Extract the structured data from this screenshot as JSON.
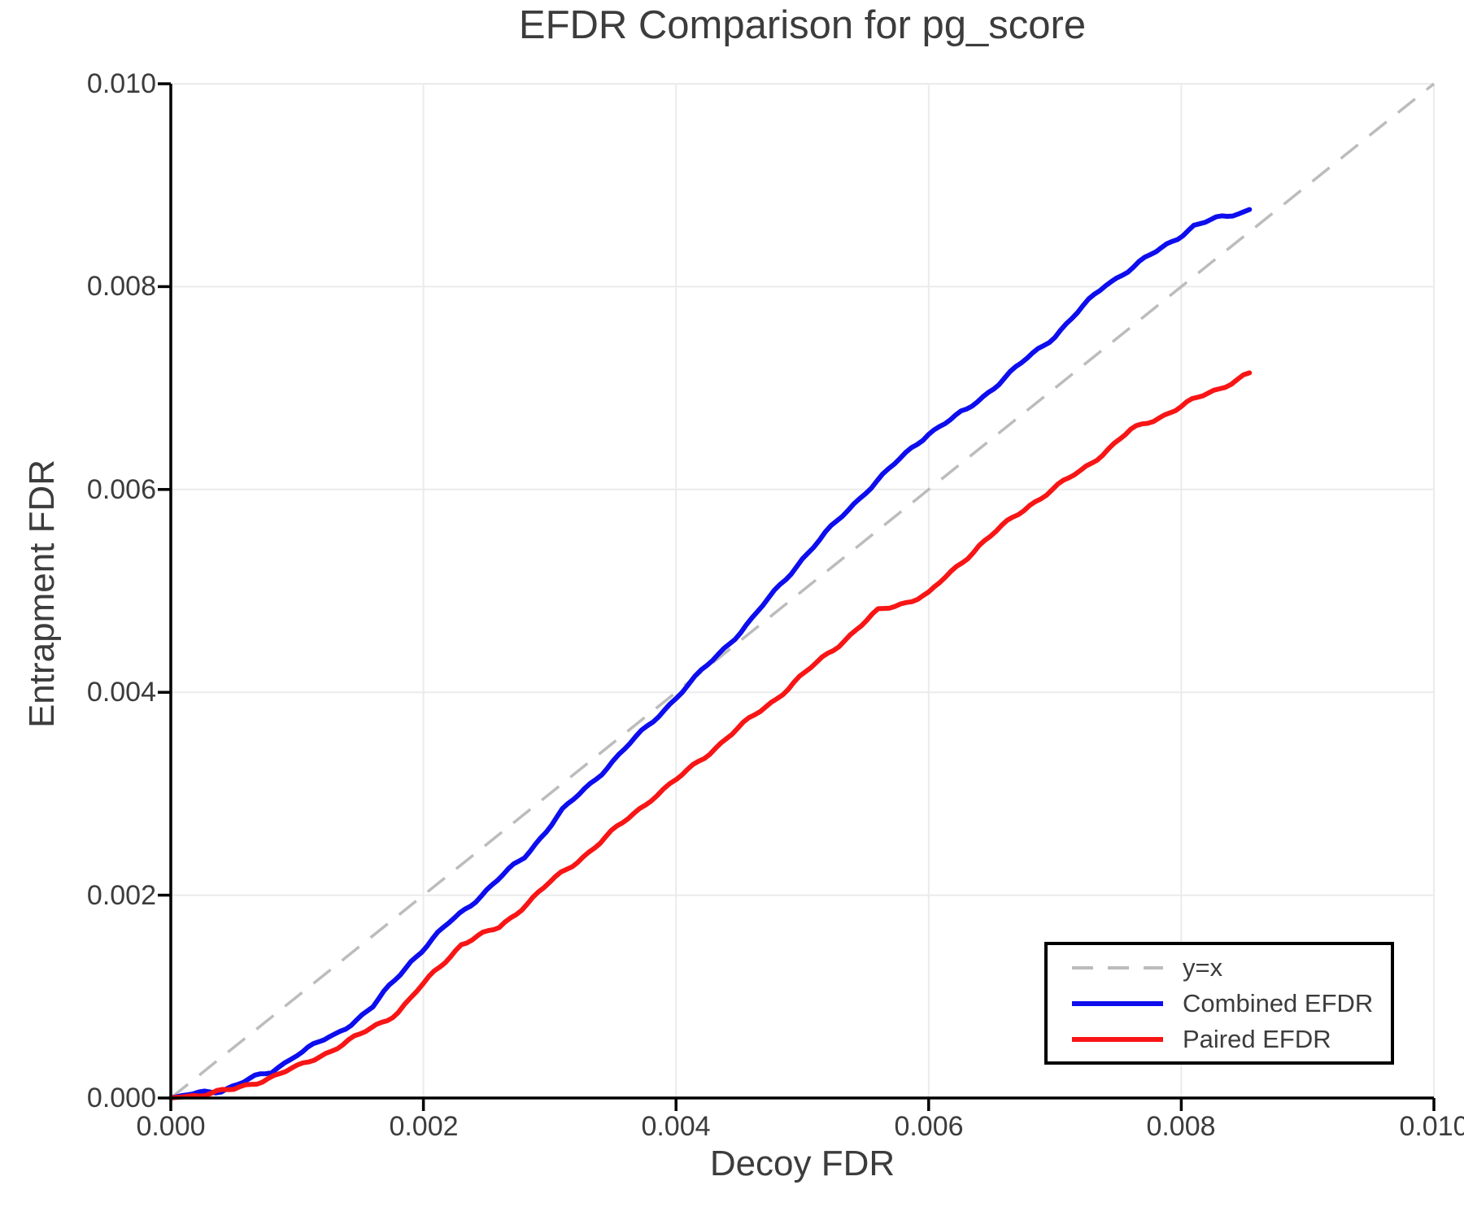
{
  "chart_data": {
    "type": "line",
    "title": "EFDR Comparison for pg_score",
    "xlabel": "Decoy FDR",
    "ylabel": "Entrapment FDR",
    "xlim": [
      0,
      0.01
    ],
    "ylim": [
      0,
      0.01
    ],
    "grid": true,
    "legend_position": "lower right",
    "x_ticks": [
      0,
      0.002,
      0.004,
      0.006,
      0.008,
      0.01
    ],
    "x_tick_labels": [
      "0.000",
      "0.002",
      "0.004",
      "0.006",
      "0.008",
      "0.010"
    ],
    "y_ticks": [
      0,
      0.002,
      0.004,
      0.006,
      0.008,
      0.01
    ],
    "y_tick_labels": [
      "0.000",
      "0.002",
      "0.004",
      "0.006",
      "0.008",
      "0.010"
    ],
    "colors": {
      "grid": "#ebebeb",
      "axis": "#000000",
      "text": "#3c3c3c",
      "identity": "#bcbcbc",
      "combined": "#0d0dee",
      "paired": "#f81515"
    },
    "series": [
      {
        "name": "y=x",
        "style": "dashed",
        "color": "#bcbcbc",
        "points": [
          [
            0,
            0
          ],
          [
            0.01,
            0.01
          ]
        ]
      },
      {
        "name": "Combined EFDR",
        "style": "solid",
        "color": "#0d0dee",
        "points": [
          [
            0,
            0
          ],
          [
            0.0004,
            8e-05
          ],
          [
            0.0008,
            0.00026
          ],
          [
            0.001,
            0.00044
          ],
          [
            0.0013,
            0.00062
          ],
          [
            0.0016,
            0.0009
          ],
          [
            0.0019,
            0.00135
          ],
          [
            0.0022,
            0.00172
          ],
          [
            0.0025,
            0.00205
          ],
          [
            0.0028,
            0.00238
          ],
          [
            0.0031,
            0.00283
          ],
          [
            0.0035,
            0.00332
          ],
          [
            0.004,
            0.00395
          ],
          [
            0.0042,
            0.0042
          ],
          [
            0.0046,
            0.00472
          ],
          [
            0.005,
            0.00532
          ],
          [
            0.0055,
            0.00598
          ],
          [
            0.006,
            0.00656
          ],
          [
            0.0063,
            0.00678
          ],
          [
            0.0066,
            0.0071
          ],
          [
            0.007,
            0.00752
          ],
          [
            0.0074,
            0.00802
          ],
          [
            0.0078,
            0.00834
          ],
          [
            0.0081,
            0.0086
          ],
          [
            0.00854,
            0.00876
          ]
        ]
      },
      {
        "name": "Paired EFDR",
        "style": "solid",
        "color": "#f81515",
        "points": [
          [
            0,
            0
          ],
          [
            0.0005,
            8e-05
          ],
          [
            0.001,
            0.0003
          ],
          [
            0.0015,
            0.00062
          ],
          [
            0.0018,
            0.00085
          ],
          [
            0.002,
            0.00112
          ],
          [
            0.0023,
            0.00152
          ],
          [
            0.0026,
            0.00168
          ],
          [
            0.003,
            0.00212
          ],
          [
            0.0034,
            0.00252
          ],
          [
            0.0038,
            0.00295
          ],
          [
            0.004,
            0.00313
          ],
          [
            0.0044,
            0.00355
          ],
          [
            0.0048,
            0.00395
          ],
          [
            0.0052,
            0.00438
          ],
          [
            0.0056,
            0.0048
          ],
          [
            0.006,
            0.00497
          ],
          [
            0.0064,
            0.00545
          ],
          [
            0.0068,
            0.00585
          ],
          [
            0.0072,
            0.00618
          ],
          [
            0.0076,
            0.00658
          ],
          [
            0.008,
            0.00682
          ],
          [
            0.0083,
            0.007
          ],
          [
            0.00854,
            0.00715
          ]
        ]
      }
    ]
  }
}
